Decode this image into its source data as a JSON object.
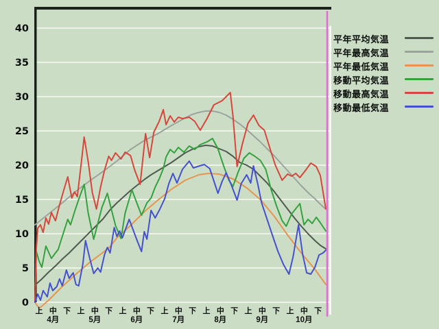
{
  "frame": {
    "background_color": "#ccddc6",
    "gridline_color": "#edf3e6",
    "axis_color": "#1b211b",
    "marker_line_color": "#e26ad8",
    "right_edge_line_color": "#f4f8f1",
    "text_color": "#0b0f0b"
  },
  "chart_data": {
    "type": "line",
    "title": "",
    "xlabel": "",
    "ylabel": "",
    "grid": "horizontal",
    "legend_position": "right",
    "y_axis": {
      "min": 0,
      "max": 40,
      "step": 5,
      "tick_labels": [
        "0",
        "5",
        "10",
        "15",
        "20",
        "25",
        "30",
        "35",
        "40"
      ]
    },
    "x_axis": {
      "unit": "days from April 1",
      "domain_days": [
        0,
        214
      ],
      "period_labels": [
        "上",
        "中",
        "下"
      ],
      "months": [
        "4月",
        "5月",
        "6月",
        "7月",
        "8月",
        "9月",
        "10月"
      ]
    },
    "series": [
      {
        "id": "normal-mean-temp",
        "name": "平年平均気温",
        "color": "#4f5a4f",
        "style": "smooth",
        "points": [
          [
            0,
            2.5
          ],
          [
            5,
            3.4
          ],
          [
            10,
            4.4
          ],
          [
            15,
            5.3
          ],
          [
            20,
            6.3
          ],
          [
            25,
            7.2
          ],
          [
            30,
            8.2
          ],
          [
            35,
            9.2
          ],
          [
            40,
            10.2
          ],
          [
            45,
            11.2
          ],
          [
            50,
            12.2
          ],
          [
            55,
            13.5
          ],
          [
            60,
            14.5
          ],
          [
            65,
            15.4
          ],
          [
            70,
            16.3
          ],
          [
            75,
            17.1
          ],
          [
            80,
            17.9
          ],
          [
            85,
            18.6
          ],
          [
            90,
            19.2
          ],
          [
            95,
            19.8
          ],
          [
            100,
            20.4
          ],
          [
            105,
            21.1
          ],
          [
            110,
            21.8
          ],
          [
            115,
            22.3
          ],
          [
            120,
            22.7
          ],
          [
            125,
            22.9
          ],
          [
            130,
            22.8
          ],
          [
            135,
            22.4
          ],
          [
            140,
            22.0
          ],
          [
            145,
            21.3
          ],
          [
            150,
            20.4
          ],
          [
            155,
            20.0
          ],
          [
            160,
            19.4
          ],
          [
            165,
            18.4
          ],
          [
            170,
            17.4
          ],
          [
            175,
            16.2
          ],
          [
            180,
            14.9
          ],
          [
            185,
            13.6
          ],
          [
            190,
            12.3
          ],
          [
            195,
            11.1
          ],
          [
            200,
            10.0
          ],
          [
            205,
            9.0
          ],
          [
            209,
            8.3
          ],
          [
            213,
            7.8
          ]
        ]
      },
      {
        "id": "normal-max-temp",
        "name": "平年最高気温",
        "color": "#9ca29c",
        "style": "smooth",
        "points": [
          [
            0,
            11.3
          ],
          [
            10,
            12.9
          ],
          [
            20,
            14.5
          ],
          [
            30,
            16.2
          ],
          [
            40,
            17.7
          ],
          [
            50,
            19.1
          ],
          [
            60,
            20.6
          ],
          [
            70,
            22.3
          ],
          [
            80,
            23.6
          ],
          [
            90,
            24.6
          ],
          [
            100,
            25.8
          ],
          [
            110,
            26.9
          ],
          [
            115,
            27.4
          ],
          [
            120,
            27.7
          ],
          [
            125,
            27.9
          ],
          [
            130,
            27.9
          ],
          [
            135,
            27.7
          ],
          [
            140,
            27.3
          ],
          [
            145,
            26.7
          ],
          [
            150,
            26.0
          ],
          [
            155,
            25.2
          ],
          [
            160,
            24.3
          ],
          [
            165,
            23.4
          ],
          [
            170,
            22.4
          ],
          [
            175,
            21.4
          ],
          [
            180,
            20.3
          ],
          [
            185,
            19.2
          ],
          [
            190,
            18.1
          ],
          [
            195,
            17.0
          ],
          [
            200,
            16.0
          ],
          [
            205,
            15.1
          ],
          [
            209,
            14.3
          ],
          [
            213,
            13.6
          ]
        ]
      },
      {
        "id": "normal-min-temp",
        "name": "平年最低気温",
        "color": "#e5954f",
        "style": "smooth",
        "points": [
          [
            0,
            0
          ],
          [
            3,
            -0.9
          ],
          [
            6,
            -0.4
          ],
          [
            10,
            0.3
          ],
          [
            20,
            2.3
          ],
          [
            30,
            4.1
          ],
          [
            40,
            5.8
          ],
          [
            50,
            7.3
          ],
          [
            55,
            8.1
          ],
          [
            60,
            9.4
          ],
          [
            70,
            11.2
          ],
          [
            80,
            13.2
          ],
          [
            90,
            14.9
          ],
          [
            100,
            16.5
          ],
          [
            110,
            17.8
          ],
          [
            120,
            18.6
          ],
          [
            127,
            18.8
          ],
          [
            135,
            18.7
          ],
          [
            145,
            18.0
          ],
          [
            155,
            16.7
          ],
          [
            165,
            15.0
          ],
          [
            175,
            12.6
          ],
          [
            185,
            9.8
          ],
          [
            195,
            7.2
          ],
          [
            205,
            4.8
          ],
          [
            213,
            2.6
          ]
        ]
      },
      {
        "id": "moving-mean-temp",
        "name": "移動平均気温",
        "color": "#33a23e",
        "style": "jagged",
        "points": [
          [
            0,
            0
          ],
          [
            1,
            7.4
          ],
          [
            3,
            6.0
          ],
          [
            5,
            5.1
          ],
          [
            8,
            8.2
          ],
          [
            12,
            6.4
          ],
          [
            15,
            7.2
          ],
          [
            17,
            7.7
          ],
          [
            20,
            9.6
          ],
          [
            24,
            12.1
          ],
          [
            26,
            11.3
          ],
          [
            29,
            13.2
          ],
          [
            32,
            15.0
          ],
          [
            36,
            17.2
          ],
          [
            39,
            13.0
          ],
          [
            43,
            9.2
          ],
          [
            46,
            11.5
          ],
          [
            49,
            13.8
          ],
          [
            53,
            15.9
          ],
          [
            56,
            13.5
          ],
          [
            59,
            11.2
          ],
          [
            63,
            9.3
          ],
          [
            66,
            13.0
          ],
          [
            71,
            16.4
          ],
          [
            74,
            14.8
          ],
          [
            78,
            12.7
          ],
          [
            82,
            14.5
          ],
          [
            85,
            15.2
          ],
          [
            88,
            16.8
          ],
          [
            91,
            18.0
          ],
          [
            94,
            19.5
          ],
          [
            96,
            21.2
          ],
          [
            99,
            22.3
          ],
          [
            102,
            21.8
          ],
          [
            105,
            22.6
          ],
          [
            109,
            21.9
          ],
          [
            113,
            22.8
          ],
          [
            117,
            22.3
          ],
          [
            121,
            23.0
          ],
          [
            126,
            23.4
          ],
          [
            130,
            23.9
          ],
          [
            134,
            22.4
          ],
          [
            138,
            20.0
          ],
          [
            142,
            17.8
          ],
          [
            145,
            16.9
          ],
          [
            149,
            19.1
          ],
          [
            153,
            21.0
          ],
          [
            157,
            21.8
          ],
          [
            161,
            21.3
          ],
          [
            165,
            20.7
          ],
          [
            169,
            19.4
          ],
          [
            173,
            16.4
          ],
          [
            177,
            14.0
          ],
          [
            181,
            11.9
          ],
          [
            184,
            11.1
          ],
          [
            188,
            12.9
          ],
          [
            194,
            14.4
          ],
          [
            197,
            11.3
          ],
          [
            200,
            12.1
          ],
          [
            203,
            11.5
          ],
          [
            206,
            12.4
          ],
          [
            209,
            11.6
          ],
          [
            213,
            10.4
          ]
        ]
      },
      {
        "id": "moving-max-temp",
        "name": "移動最高気温",
        "color": "#d8453a",
        "style": "jagged",
        "points": [
          [
            0,
            0
          ],
          [
            1,
            8.0
          ],
          [
            2,
            10.8
          ],
          [
            4,
            11.3
          ],
          [
            6,
            10.2
          ],
          [
            8,
            12.3
          ],
          [
            10,
            11.4
          ],
          [
            12,
            13.1
          ],
          [
            15,
            11.9
          ],
          [
            18,
            14.2
          ],
          [
            21,
            16.3
          ],
          [
            24,
            18.3
          ],
          [
            27,
            15.2
          ],
          [
            29,
            16.1
          ],
          [
            31,
            15.4
          ],
          [
            34,
            20.5
          ],
          [
            36,
            24.1
          ],
          [
            39,
            20.5
          ],
          [
            42,
            16.0
          ],
          [
            45,
            13.6
          ],
          [
            48,
            16.8
          ],
          [
            51,
            19.3
          ],
          [
            54,
            21.3
          ],
          [
            56,
            20.7
          ],
          [
            59,
            21.8
          ],
          [
            63,
            20.9
          ],
          [
            66,
            21.9
          ],
          [
            70,
            21.4
          ],
          [
            73,
            19.3
          ],
          [
            77,
            17.2
          ],
          [
            81,
            24.6
          ],
          [
            84,
            21.1
          ],
          [
            87,
            24.8
          ],
          [
            91,
            26.4
          ],
          [
            94,
            28.1
          ],
          [
            96,
            25.9
          ],
          [
            99,
            27.2
          ],
          [
            102,
            26.3
          ],
          [
            105,
            27.0
          ],
          [
            108,
            26.8
          ],
          [
            113,
            27.0
          ],
          [
            117,
            26.4
          ],
          [
            121,
            25.1
          ],
          [
            126,
            26.8
          ],
          [
            131,
            28.8
          ],
          [
            137,
            29.4
          ],
          [
            143,
            30.6
          ],
          [
            145,
            27.2
          ],
          [
            148,
            19.8
          ],
          [
            152,
            23.2
          ],
          [
            156,
            26.1
          ],
          [
            160,
            27.3
          ],
          [
            164,
            25.8
          ],
          [
            168,
            25.1
          ],
          [
            172,
            22.5
          ],
          [
            176,
            20.0
          ],
          [
            181,
            17.8
          ],
          [
            185,
            18.7
          ],
          [
            188,
            18.4
          ],
          [
            191,
            18.8
          ],
          [
            194,
            18.2
          ],
          [
            198,
            19.2
          ],
          [
            202,
            20.3
          ],
          [
            206,
            19.8
          ],
          [
            209,
            18.5
          ],
          [
            213,
            13.6
          ]
        ]
      },
      {
        "id": "moving-min-temp",
        "name": "移動最低気温",
        "color": "#4350cf",
        "style": "jagged",
        "points": [
          [
            0,
            0
          ],
          [
            2,
            1.2
          ],
          [
            4,
            0.3
          ],
          [
            6,
            1.7
          ],
          [
            9,
            0.8
          ],
          [
            11,
            2.8
          ],
          [
            13,
            1.7
          ],
          [
            16,
            2.3
          ],
          [
            18,
            3.4
          ],
          [
            20,
            2.4
          ],
          [
            23,
            4.7
          ],
          [
            25,
            3.5
          ],
          [
            28,
            4.3
          ],
          [
            30,
            2.6
          ],
          [
            32,
            2.4
          ],
          [
            35,
            5.5
          ],
          [
            37,
            9.0
          ],
          [
            40,
            6.5
          ],
          [
            43,
            4.2
          ],
          [
            46,
            5.0
          ],
          [
            48,
            4.4
          ],
          [
            51,
            7.0
          ],
          [
            53,
            8.0
          ],
          [
            55,
            7.2
          ],
          [
            58,
            10.9
          ],
          [
            60,
            9.6
          ],
          [
            62,
            10.4
          ],
          [
            64,
            9.4
          ],
          [
            66,
            10.5
          ],
          [
            69,
            12.1
          ],
          [
            72,
            10.5
          ],
          [
            75,
            8.9
          ],
          [
            78,
            7.4
          ],
          [
            80,
            10.3
          ],
          [
            82,
            9.2
          ],
          [
            85,
            13.4
          ],
          [
            88,
            12.3
          ],
          [
            91,
            13.4
          ],
          [
            95,
            15.1
          ],
          [
            98,
            17.3
          ],
          [
            101,
            18.8
          ],
          [
            104,
            17.4
          ],
          [
            108,
            19.4
          ],
          [
            113,
            20.6
          ],
          [
            116,
            19.6
          ],
          [
            119,
            19.8
          ],
          [
            124,
            20.1
          ],
          [
            128,
            19.5
          ],
          [
            131,
            17.7
          ],
          [
            134,
            15.9
          ],
          [
            137,
            17.6
          ],
          [
            140,
            18.9
          ],
          [
            144,
            17.0
          ],
          [
            148,
            14.9
          ],
          [
            151,
            17.3
          ],
          [
            155,
            18.6
          ],
          [
            158,
            17.4
          ],
          [
            160,
            19.9
          ],
          [
            163,
            17.4
          ],
          [
            166,
            14.5
          ],
          [
            170,
            12.1
          ],
          [
            174,
            9.7
          ],
          [
            178,
            7.4
          ],
          [
            182,
            5.5
          ],
          [
            186,
            4.1
          ],
          [
            189,
            6.6
          ],
          [
            193,
            11.3
          ],
          [
            196,
            7.0
          ],
          [
            199,
            4.3
          ],
          [
            202,
            4.1
          ],
          [
            205,
            5.1
          ],
          [
            208,
            6.9
          ],
          [
            211,
            7.2
          ],
          [
            213,
            7.6
          ]
        ]
      }
    ]
  }
}
